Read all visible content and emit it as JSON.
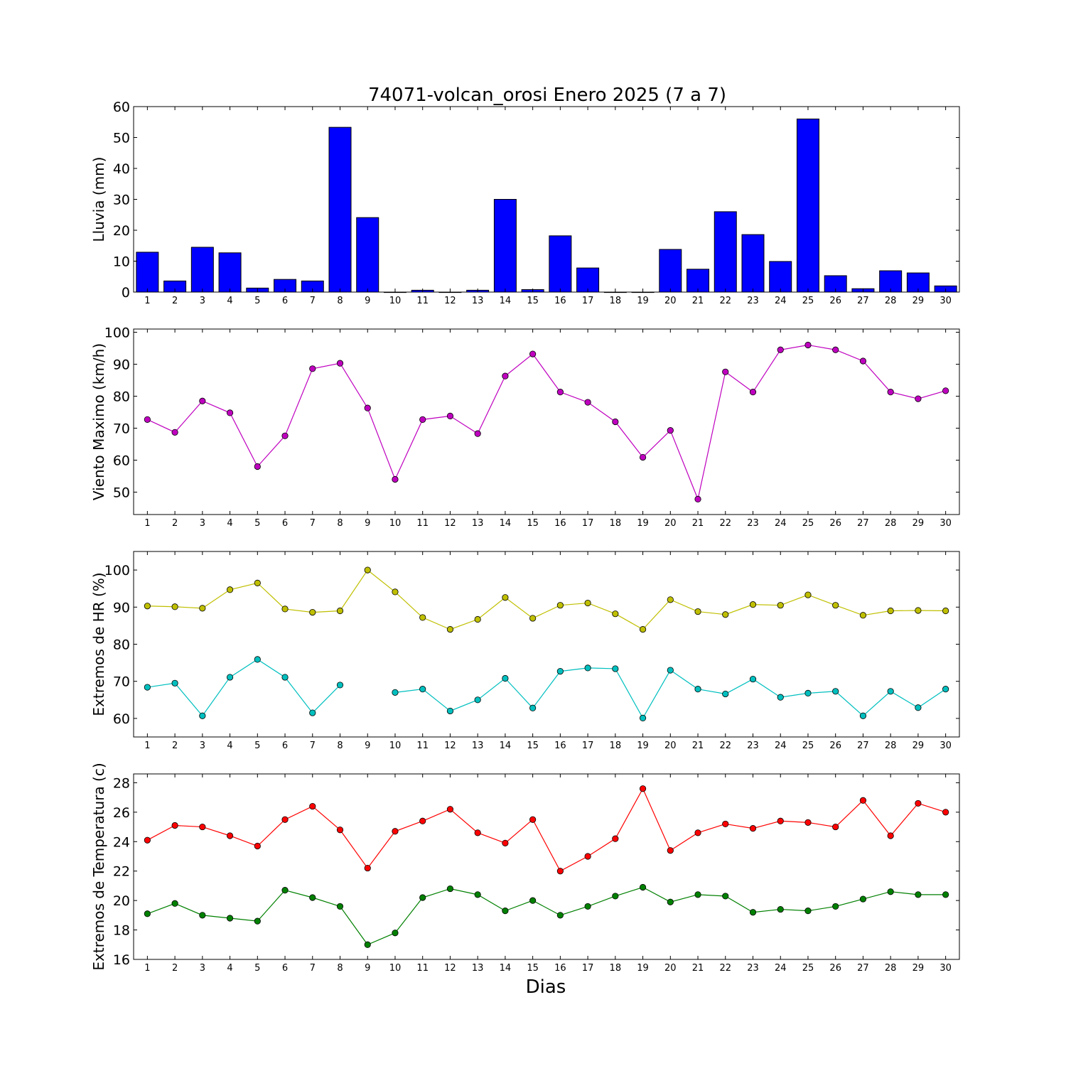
{
  "figure": {
    "title": "74071-volcan_orosi Enero 2025  (7 a 7)",
    "xlabel": "Dias"
  },
  "chart_data": [
    {
      "type": "bar",
      "ylabel": "Lluvia (mm)",
      "ylim": [
        0,
        60
      ],
      "yticks": [
        0,
        10,
        20,
        30,
        40,
        50,
        60
      ],
      "categories": [
        1,
        2,
        3,
        4,
        5,
        6,
        7,
        8,
        9,
        10,
        11,
        12,
        13,
        14,
        15,
        16,
        17,
        18,
        19,
        20,
        21,
        22,
        23,
        24,
        25,
        26,
        27,
        28,
        29,
        30
      ],
      "series": [
        {
          "color": "#0000ff",
          "values": [
            12.9,
            3.6,
            14.5,
            12.7,
            1.3,
            4.1,
            3.6,
            53.3,
            24.1,
            0,
            0.6,
            0,
            0.6,
            30.0,
            0.8,
            18.2,
            7.8,
            0,
            0,
            13.8,
            7.4,
            26.0,
            18.6,
            9.9,
            56.0,
            5.3,
            1.1,
            6.9,
            6.2,
            2.0
          ]
        }
      ]
    },
    {
      "type": "line",
      "ylabel": "Viento Maximo (km/h)",
      "ylim": [
        43,
        101
      ],
      "yticks": [
        50,
        60,
        70,
        80,
        90,
        100
      ],
      "categories": [
        1,
        2,
        3,
        4,
        5,
        6,
        7,
        8,
        9,
        10,
        11,
        12,
        13,
        14,
        15,
        16,
        17,
        18,
        19,
        20,
        21,
        22,
        23,
        24,
        25,
        26,
        27,
        28,
        29,
        30
      ],
      "series": [
        {
          "color": "#bf00bf",
          "values": [
            72.7,
            68.7,
            78.5,
            74.8,
            58.0,
            67.6,
            88.6,
            90.3,
            76.3,
            54.0,
            72.7,
            73.8,
            68.3,
            86.3,
            93.2,
            81.3,
            78.1,
            72.0,
            60.9,
            69.3,
            47.8,
            87.6,
            81.3,
            94.5,
            96.0,
            94.5,
            91.0,
            81.3,
            79.2,
            81.7
          ]
        }
      ]
    },
    {
      "type": "line",
      "ylabel": "Extremos de HR (%)",
      "ylim": [
        55,
        105
      ],
      "yticks": [
        60,
        70,
        80,
        90,
        100
      ],
      "categories": [
        1,
        2,
        3,
        4,
        5,
        6,
        7,
        8,
        9,
        10,
        11,
        12,
        13,
        14,
        15,
        16,
        17,
        18,
        19,
        20,
        21,
        22,
        23,
        24,
        25,
        26,
        27,
        28,
        29,
        30
      ],
      "series": [
        {
          "color": "#bfbf00",
          "values": [
            90.3,
            90.1,
            89.7,
            94.7,
            96.5,
            89.5,
            88.6,
            89.0,
            100.0,
            94.1,
            87.2,
            84.0,
            86.7,
            92.6,
            87.0,
            90.5,
            91.1,
            88.2,
            84.0,
            92.0,
            88.8,
            88.0,
            90.7,
            90.5,
            93.3,
            90.5,
            87.8,
            89.0,
            89.1,
            89.0
          ]
        },
        {
          "color": "#00bfbf",
          "values": [
            68.4,
            69.5,
            60.7,
            71.1,
            75.9,
            71.1,
            61.5,
            69.0,
            null,
            67.0,
            67.9,
            62.0,
            65.0,
            70.8,
            62.8,
            72.7,
            73.6,
            73.4,
            60.1,
            73.0,
            67.9,
            66.6,
            70.6,
            65.7,
            66.8,
            67.3,
            60.7,
            67.3,
            62.9,
            67.9
          ]
        }
      ]
    },
    {
      "type": "line",
      "ylabel": "Extremos de Temperatura (c)",
      "ylim": [
        16,
        28.6
      ],
      "yticks": [
        16,
        18,
        20,
        22,
        24,
        26,
        28
      ],
      "categories": [
        1,
        2,
        3,
        4,
        5,
        6,
        7,
        8,
        9,
        10,
        11,
        12,
        13,
        14,
        15,
        16,
        17,
        18,
        19,
        20,
        21,
        22,
        23,
        24,
        25,
        26,
        27,
        28,
        29,
        30
      ],
      "series": [
        {
          "color": "#ff0000",
          "values": [
            24.1,
            25.1,
            25.0,
            24.4,
            23.7,
            25.5,
            26.4,
            24.8,
            22.2,
            24.7,
            25.4,
            26.2,
            24.6,
            23.9,
            25.5,
            22.0,
            23.0,
            24.2,
            27.6,
            23.4,
            24.6,
            25.2,
            24.9,
            25.4,
            25.3,
            25.0,
            26.8,
            24.4,
            26.6,
            26.0
          ]
        },
        {
          "color": "#008000",
          "values": [
            19.1,
            19.8,
            19.0,
            18.8,
            18.6,
            20.7,
            20.2,
            19.6,
            17.0,
            17.8,
            20.2,
            20.8,
            20.4,
            19.3,
            20.0,
            19.0,
            19.6,
            20.3,
            20.9,
            19.9,
            20.4,
            20.3,
            19.2,
            19.4,
            19.3,
            19.6,
            20.1,
            20.6,
            20.4,
            20.4
          ]
        }
      ]
    }
  ]
}
